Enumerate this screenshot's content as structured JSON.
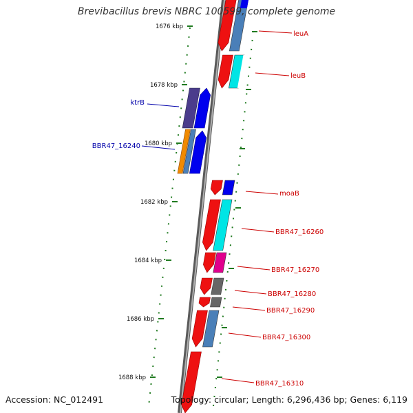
{
  "title": "Brevibacillus brevis NBRC 100599, complete genome",
  "footer": {
    "accession": "Accession: NC_012491",
    "topology": "Topology: circular; Length: 6,296,436 bp; Genes: 6,119"
  },
  "ruler_labels": [
    "1676 kbp",
    "1678 kbp",
    "1680 kbp",
    "1682 kbp",
    "1684 kbp",
    "1686 kbp",
    "1688 kbp"
  ],
  "genes": [
    {
      "name": "leuA",
      "strand": "+",
      "color": "#cc0000"
    },
    {
      "name": "leuB",
      "strand": "+",
      "color": "#cc0000"
    },
    {
      "name": "ktrB",
      "strand": "-",
      "color": "#0000aa"
    },
    {
      "name": "BBR47_16240",
      "strand": "-",
      "color": "#0000aa"
    },
    {
      "name": "moaB",
      "strand": "+",
      "color": "#cc0000"
    },
    {
      "name": "BBR47_16260",
      "strand": "+",
      "color": "#cc0000"
    },
    {
      "name": "BBR47_16270",
      "strand": "+",
      "color": "#cc0000"
    },
    {
      "name": "BBR47_16280",
      "strand": "+",
      "color": "#cc0000"
    },
    {
      "name": "BBR47_16290",
      "strand": "+",
      "color": "#cc0000"
    },
    {
      "name": "BBR47_16300",
      "strand": "+",
      "color": "#cc0000"
    },
    {
      "name": "BBR47_16310",
      "strand": "+",
      "color": "#cc0000"
    }
  ],
  "colors": {
    "backbone": "#888888",
    "ruler": "#1f7a1f",
    "forward_gene": "#ee1111",
    "reverse_gene": "#0000ee",
    "cog_blue": "#4a7fb8",
    "cog_cyan": "#00e5e5",
    "cog_magenta": "#e0008c",
    "cog_grey": "#666666",
    "cog_purple": "#4b3c8c",
    "cog_orange": "#f08a00"
  }
}
